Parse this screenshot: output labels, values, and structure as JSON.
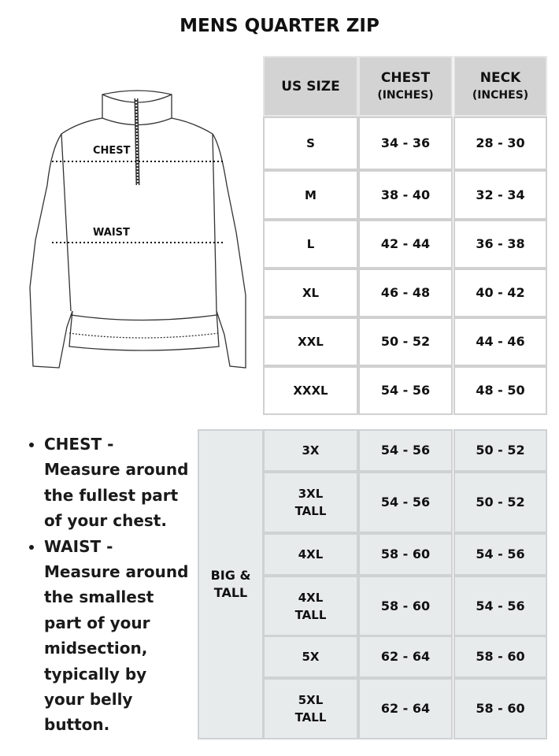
{
  "title": "MENS QUARTER ZIP",
  "diagram": {
    "chest_label": "CHEST",
    "waist_label": "WAIST"
  },
  "size_table": {
    "headers": [
      {
        "main": "US SIZE",
        "sub": ""
      },
      {
        "main": "CHEST",
        "sub": "(INCHES)"
      },
      {
        "main": "NECK",
        "sub": "(INCHES)"
      }
    ],
    "rows": [
      [
        "S",
        "34 - 36",
        "28 - 30"
      ],
      [
        "M",
        "38 - 40",
        "32 - 34"
      ],
      [
        "L",
        "42 - 44",
        "36 - 38"
      ],
      [
        "XL",
        "46 - 48",
        "40 - 42"
      ],
      [
        "XXL",
        "50 - 52",
        "44 - 46"
      ],
      [
        "XXXL",
        "54 - 56",
        "48 - 50"
      ]
    ]
  },
  "big_tall_table": {
    "group_label": "BIG & TALL",
    "rows": [
      [
        "3X",
        "54 - 56",
        "50 - 52"
      ],
      [
        "3XL TALL",
        "54 - 56",
        "50 - 52"
      ],
      [
        "4XL",
        "58 - 60",
        "54 - 56"
      ],
      [
        "4XL TALL",
        "58 - 60",
        "54 - 56"
      ],
      [
        "5X",
        "62 - 64",
        "58 - 60"
      ],
      [
        "5XL TALL",
        "62 - 64",
        "58 - 60"
      ]
    ]
  },
  "notes": [
    "CHEST - Measure around the fullest part of your chest.",
    "WAIST - Measure around the smallest part of your midsection, typically by your belly button."
  ],
  "colors": {
    "header_bg": "#d3d3d3",
    "big_tall_bg": "#e8ebec",
    "border": "#d0d0d0"
  }
}
